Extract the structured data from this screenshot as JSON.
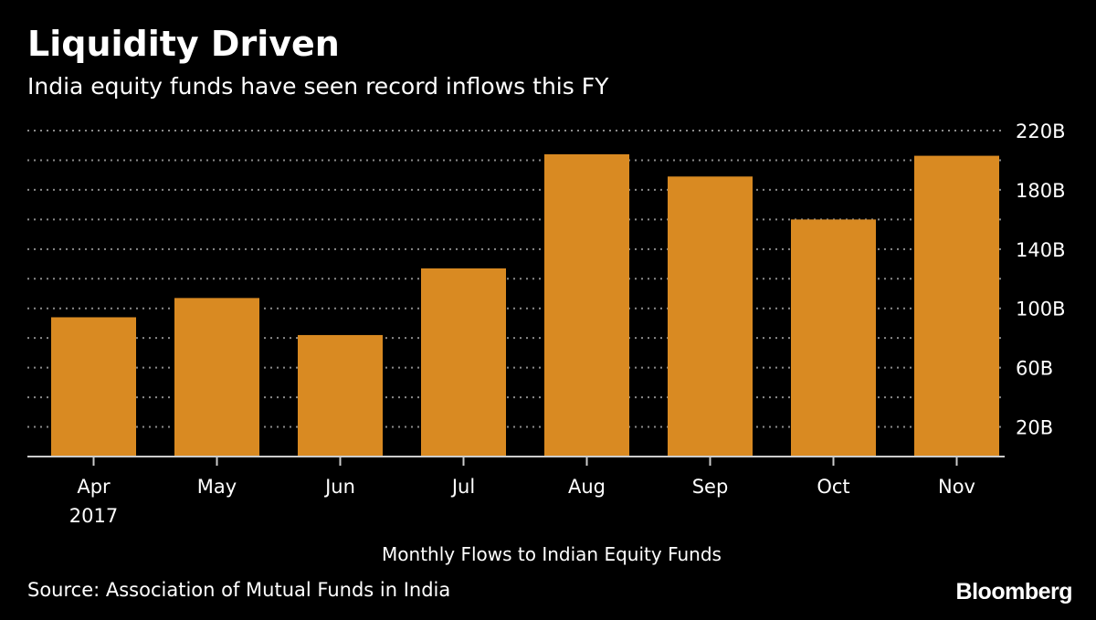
{
  "header": {
    "title": "Liquidity Driven",
    "subtitle": "India equity funds have seen record inflows this FY"
  },
  "footer": {
    "source": "Source: Association of Mutual Funds in India",
    "brand": "Bloomberg"
  },
  "colors": {
    "background": "#000000",
    "bar": "#d98a22",
    "text": "#ffffff",
    "grid": "#8a8a8a"
  },
  "chart_data": {
    "type": "bar",
    "categories": [
      "Apr",
      "May",
      "Jun",
      "Jul",
      "Aug",
      "Sep",
      "Oct",
      "Nov"
    ],
    "category_sublabels": [
      "2017",
      "",
      "",
      "",
      "",
      "",
      "",
      ""
    ],
    "values": [
      94,
      107,
      82,
      127,
      204,
      189,
      160,
      203
    ],
    "xlabel": "Monthly Flows to Indian Equity Funds",
    "ylabel": "",
    "ylim": [
      0,
      220
    ],
    "yticks": [
      20,
      60,
      100,
      140,
      180,
      220
    ],
    "ytick_labels": [
      "20B",
      "60B",
      "100B",
      "140B",
      "180B",
      "220B"
    ],
    "gridline_step": 20,
    "grid": true,
    "y_axis_position": "right"
  }
}
